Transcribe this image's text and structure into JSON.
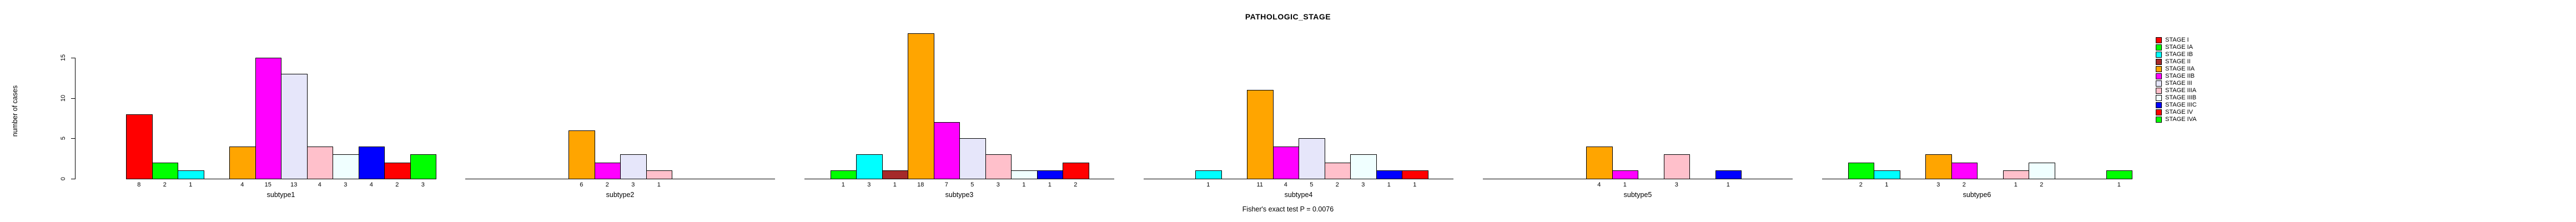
{
  "chart_data": {
    "type": "bar",
    "title": "PATHOLOGIC_STAGE",
    "ylabel": "number of cases",
    "footer": "Fisher's exact test P = 0.0076",
    "yticks": [
      0,
      5,
      10,
      15
    ],
    "ylim": [
      0,
      18
    ],
    "grid": false,
    "legend_position": "right",
    "bar_value_labels_shown": true,
    "stages": [
      {
        "name": "STAGE I",
        "color": "#FF0000"
      },
      {
        "name": "STAGE IA",
        "color": "#00FF00"
      },
      {
        "name": "STAGE IB",
        "color": "#00FFFF"
      },
      {
        "name": "STAGE II",
        "color": "#A52A2A"
      },
      {
        "name": "STAGE IIA",
        "color": "#FFA500"
      },
      {
        "name": "STAGE IIB",
        "color": "#FF00FF"
      },
      {
        "name": "STAGE III",
        "color": "#E6E6FA"
      },
      {
        "name": "STAGE IIIA",
        "color": "#FFC0CB"
      },
      {
        "name": "STAGE IIIB",
        "color": "#F0FFFF"
      },
      {
        "name": "STAGE IIIC",
        "color": "#0000FF"
      },
      {
        "name": "STAGE IV",
        "color": "#FF0000"
      },
      {
        "name": "STAGE IVA",
        "color": "#00FF00"
      }
    ],
    "series": [
      {
        "name": "subtype1",
        "values": [
          8,
          2,
          1,
          0,
          4,
          15,
          13,
          4,
          3,
          4,
          2,
          3
        ]
      },
      {
        "name": "subtype2",
        "values": [
          0,
          0,
          0,
          0,
          6,
          2,
          3,
          1,
          0,
          0,
          0,
          0
        ]
      },
      {
        "name": "subtype3",
        "values": [
          0,
          1,
          3,
          1,
          18,
          7,
          5,
          3,
          1,
          1,
          2,
          0
        ]
      },
      {
        "name": "subtype4",
        "values": [
          0,
          0,
          1,
          0,
          11,
          4,
          5,
          2,
          3,
          1,
          1,
          0
        ]
      },
      {
        "name": "subtype5",
        "values": [
          0,
          0,
          0,
          0,
          4,
          1,
          0,
          3,
          0,
          1,
          0,
          0
        ]
      },
      {
        "name": "subtype6",
        "values": [
          0,
          2,
          1,
          0,
          3,
          2,
          0,
          1,
          2,
          0,
          0,
          1
        ]
      }
    ]
  }
}
